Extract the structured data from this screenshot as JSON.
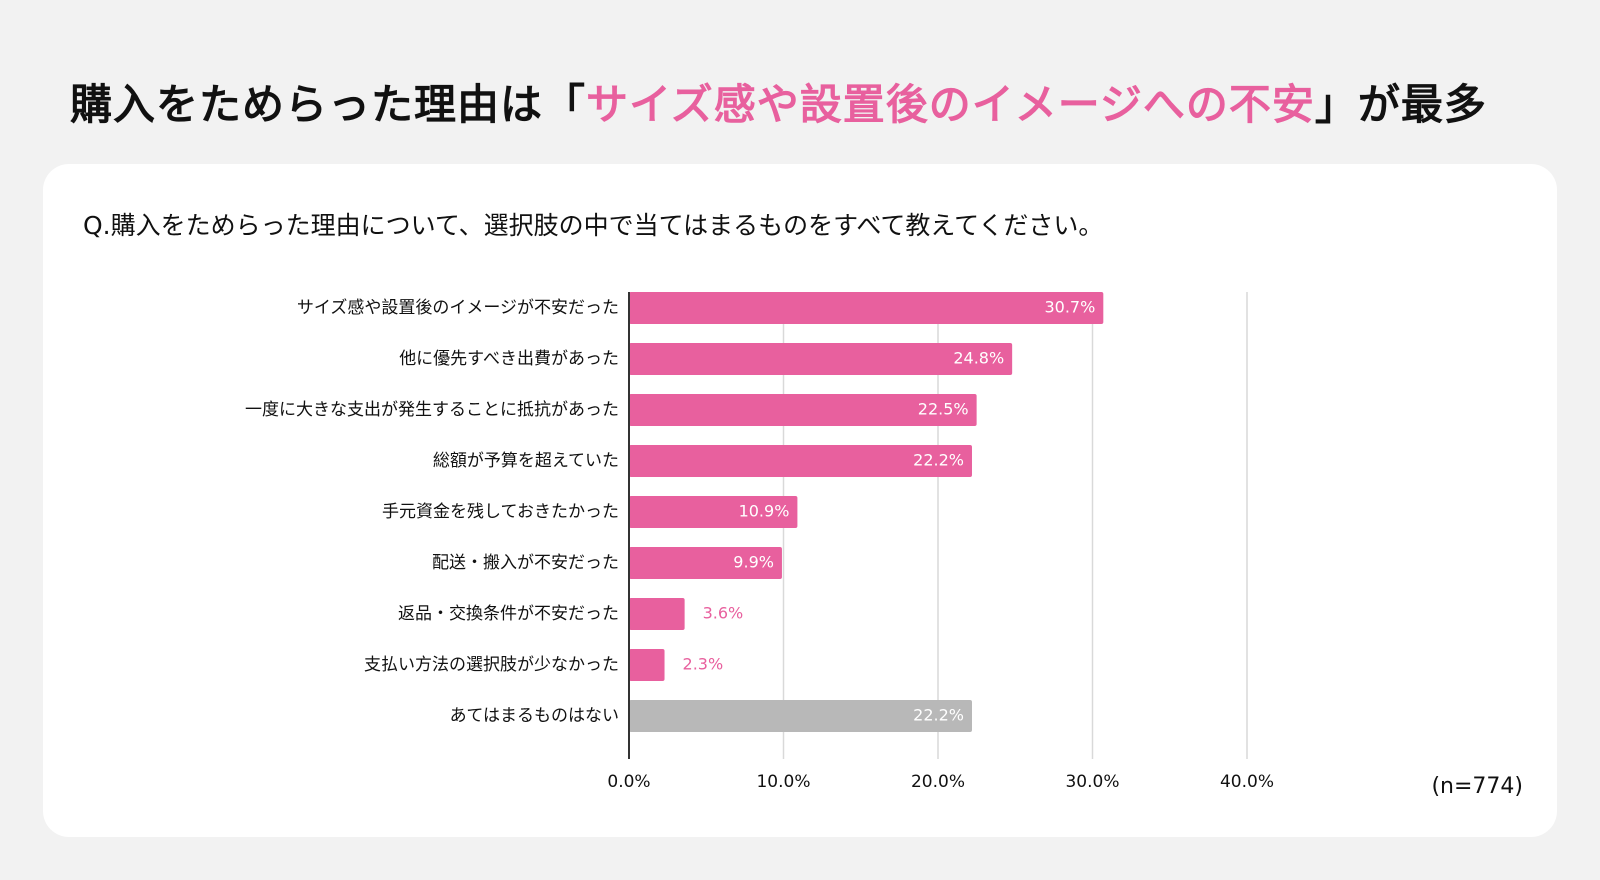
{
  "headline": {
    "prefix": "購入をためらった理由は「",
    "highlight": "サイズ感や設置後のイメージへの不安",
    "suffix": "」が最多"
  },
  "question": "Q.購入をためらった理由について、選択肢の中で当てはまるものをすべて教えてください。",
  "sample_size": "(n=774)",
  "colors": {
    "accent": "#e8609e",
    "neutral": "#b8b8b8",
    "grid": "#d9d9d9",
    "axis": "#333333"
  },
  "chart_data": {
    "type": "bar",
    "orientation": "horizontal",
    "categories": [
      "サイズ感や設置後のイメージが不安だった",
      "他に優先すべき出費があった",
      "一度に大きな支出が発生することに抵抗があった",
      "総額が予算を超えていた",
      "手元資金を残しておきたかった",
      "配送・搬入が不安だった",
      "返品・交換条件が不安だった",
      "支払い方法の選択肢が少なかった",
      "あてはまるものはない"
    ],
    "values": [
      30.7,
      24.8,
      22.5,
      22.2,
      10.9,
      9.9,
      3.6,
      2.3,
      22.2
    ],
    "value_labels": [
      "30.7%",
      "24.8%",
      "22.5%",
      "22.2%",
      "10.9%",
      "9.9%",
      "3.6%",
      "2.3%",
      "22.2%"
    ],
    "bar_colors": [
      "#e8609e",
      "#e8609e",
      "#e8609e",
      "#e8609e",
      "#e8609e",
      "#e8609e",
      "#e8609e",
      "#e8609e",
      "#b8b8b8"
    ],
    "xlim": [
      0,
      40
    ],
    "xticks": [
      0,
      10,
      20,
      30,
      40
    ],
    "xtick_labels": [
      "0.0%",
      "10.0%",
      "20.0%",
      "30.0%",
      "40.0%"
    ],
    "grid": true,
    "legend": "none"
  }
}
